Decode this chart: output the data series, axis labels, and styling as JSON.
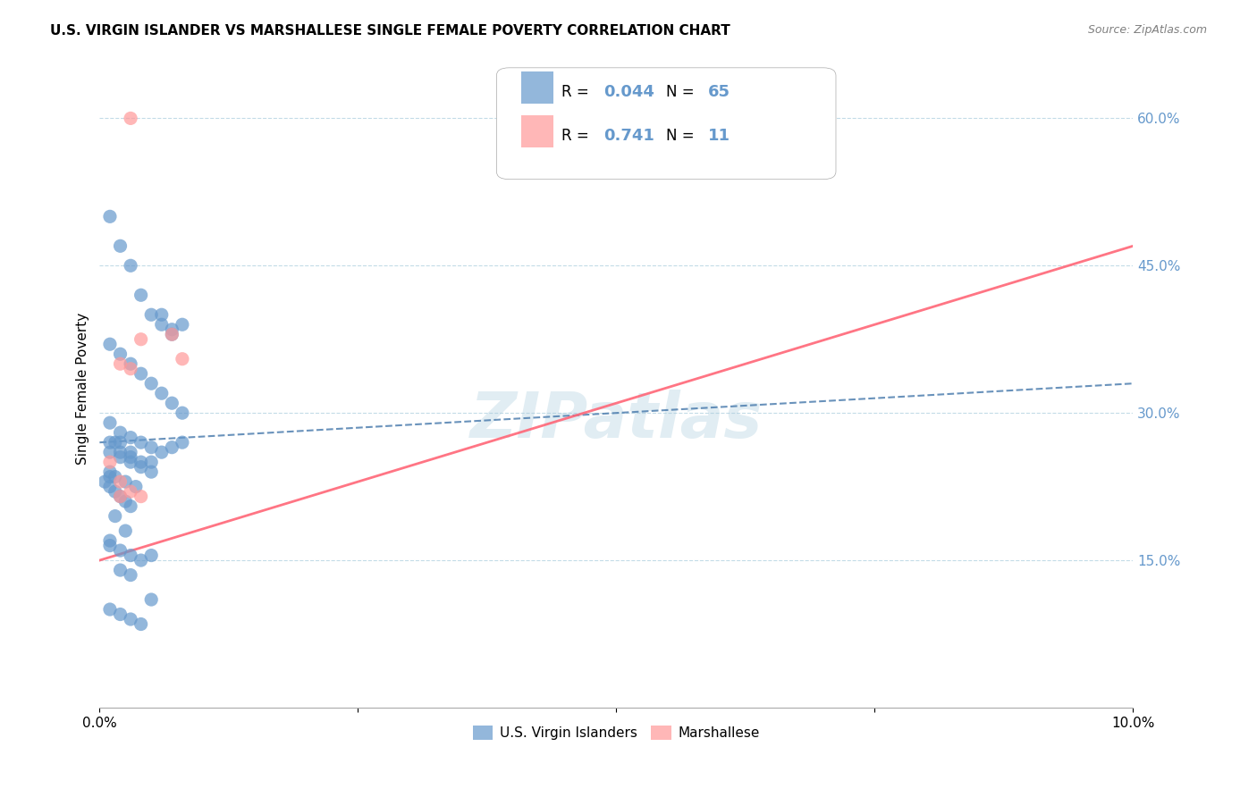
{
  "title": "U.S. VIRGIN ISLANDER VS MARSHALLESE SINGLE FEMALE POVERTY CORRELATION CHART",
  "source": "Source: ZipAtlas.com",
  "xlabel_bottom": "",
  "ylabel": "Single Female Poverty",
  "x_label_bottom_left": "0.0%",
  "x_label_bottom_right": "10.0%",
  "right_ytick_labels": [
    "60.0%",
    "45.0%",
    "30.0%",
    "15.0%"
  ],
  "right_ytick_values": [
    0.6,
    0.45,
    0.3,
    0.15
  ],
  "xlim": [
    0.0,
    0.1
  ],
  "ylim": [
    0.0,
    0.65
  ],
  "watermark": "ZIPatlas",
  "legend_label_blue": "U.S. Virgin Islanders",
  "legend_label_pink": "Marshallese",
  "r_blue": "0.044",
  "n_blue": "65",
  "r_pink": "0.741",
  "n_pink": "11",
  "blue_color": "#6699CC",
  "pink_color": "#FF9999",
  "trendline_blue_color": "#4477AA",
  "trendline_pink_color": "#FF6677",
  "blue_scatter_x": [
    0.001,
    0.002,
    0.003,
    0.004,
    0.005,
    0.006,
    0.007,
    0.008,
    0.001,
    0.002,
    0.003,
    0.004,
    0.005,
    0.006,
    0.007,
    0.008,
    0.001,
    0.002,
    0.003,
    0.004,
    0.005,
    0.006,
    0.007,
    0.008,
    0.001,
    0.002,
    0.003,
    0.004,
    0.005,
    0.0015,
    0.0025,
    0.0035,
    0.001,
    0.0015,
    0.002,
    0.002,
    0.003,
    0.003,
    0.004,
    0.005,
    0.001,
    0.001,
    0.0005,
    0.001,
    0.0015,
    0.002,
    0.0025,
    0.003,
    0.0015,
    0.0025,
    0.001,
    0.001,
    0.002,
    0.003,
    0.004,
    0.005,
    0.002,
    0.003,
    0.001,
    0.002,
    0.003,
    0.004,
    0.005,
    0.006,
    0.007
  ],
  "blue_scatter_y": [
    0.5,
    0.47,
    0.45,
    0.42,
    0.4,
    0.4,
    0.38,
    0.39,
    0.37,
    0.36,
    0.35,
    0.34,
    0.33,
    0.32,
    0.31,
    0.3,
    0.29,
    0.28,
    0.275,
    0.27,
    0.265,
    0.26,
    0.265,
    0.27,
    0.26,
    0.255,
    0.25,
    0.245,
    0.24,
    0.235,
    0.23,
    0.225,
    0.27,
    0.27,
    0.27,
    0.26,
    0.26,
    0.255,
    0.25,
    0.25,
    0.24,
    0.235,
    0.23,
    0.225,
    0.22,
    0.215,
    0.21,
    0.205,
    0.195,
    0.18,
    0.17,
    0.165,
    0.16,
    0.155,
    0.15,
    0.155,
    0.14,
    0.135,
    0.1,
    0.095,
    0.09,
    0.085,
    0.11,
    0.39,
    0.385
  ],
  "pink_scatter_x": [
    0.001,
    0.002,
    0.003,
    0.003,
    0.004,
    0.004,
    0.007,
    0.008,
    0.002,
    0.002,
    0.003
  ],
  "pink_scatter_y": [
    0.25,
    0.35,
    0.345,
    0.22,
    0.215,
    0.375,
    0.38,
    0.355,
    0.23,
    0.215,
    0.6
  ],
  "blue_trend_x": [
    0.0,
    0.1
  ],
  "blue_trend_y": [
    0.27,
    0.33
  ],
  "pink_trend_x": [
    0.0,
    0.1
  ],
  "pink_trend_y": [
    0.15,
    0.47
  ]
}
